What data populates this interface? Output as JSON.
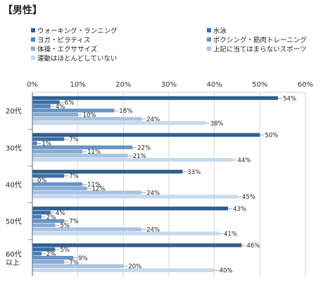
{
  "title": "【男性】",
  "chart_data": {
    "type": "bar",
    "orientation": "horizontal",
    "title": "【男性】",
    "xlabel": "",
    "ylabel": "",
    "xlim": [
      0,
      60
    ],
    "xticks": [
      "0%",
      "10%",
      "20%",
      "30%",
      "40%",
      "50%",
      "60%"
    ],
    "xtick_values": [
      0,
      10,
      20,
      30,
      40,
      50,
      60
    ],
    "grid": true,
    "legend_position": "top",
    "categories": [
      "20代",
      "30代",
      "40代",
      "50代",
      "60代\n以上"
    ],
    "series": [
      {
        "name": "ウォーキング・ランニング",
        "color": "#2f5f8f",
        "values": [
          54,
          50,
          33,
          43,
          46
        ],
        "labels": [
          "54%",
          "50%",
          "33%",
          "43%",
          "46%"
        ]
      },
      {
        "name": "水泳",
        "color": "#3b6fa6",
        "values": [
          6,
          7,
          7,
          4,
          5
        ],
        "labels": [
          "6%",
          "7%",
          "7%",
          "4%",
          "5%"
        ]
      },
      {
        "name": "ヨガ・ピラティス",
        "color": "#4a80bc",
        "values": [
          4,
          1,
          0,
          2,
          2
        ],
        "labels": [
          "4%",
          "1%",
          "0%",
          "2%",
          "2%"
        ]
      },
      {
        "name": "ボクシング・筋肉トレーニング",
        "color": "#6793c6",
        "values": [
          18,
          22,
          11,
          7,
          9
        ],
        "labels": [
          "18%",
          "22%",
          "11%",
          "7%",
          "9%"
        ]
      },
      {
        "name": "体操・エクササイズ",
        "color": "#87aad3",
        "values": [
          10,
          11,
          12,
          5,
          7
        ],
        "labels": [
          "10%",
          "11%",
          "12%",
          "5%",
          "7%"
        ]
      },
      {
        "name": "上記に当てはまらないスポーツ",
        "color": "#a9c3e2",
        "values": [
          24,
          21,
          24,
          24,
          20
        ],
        "labels": [
          "24%",
          "21%",
          "24%",
          "24%",
          "20%"
        ]
      },
      {
        "name": "運動はほとんどしていない",
        "color": "#c8d9ee",
        "values": [
          38,
          44,
          45,
          41,
          40
        ],
        "labels": [
          "38%",
          "44%",
          "45%",
          "41%",
          "40%"
        ]
      }
    ]
  }
}
